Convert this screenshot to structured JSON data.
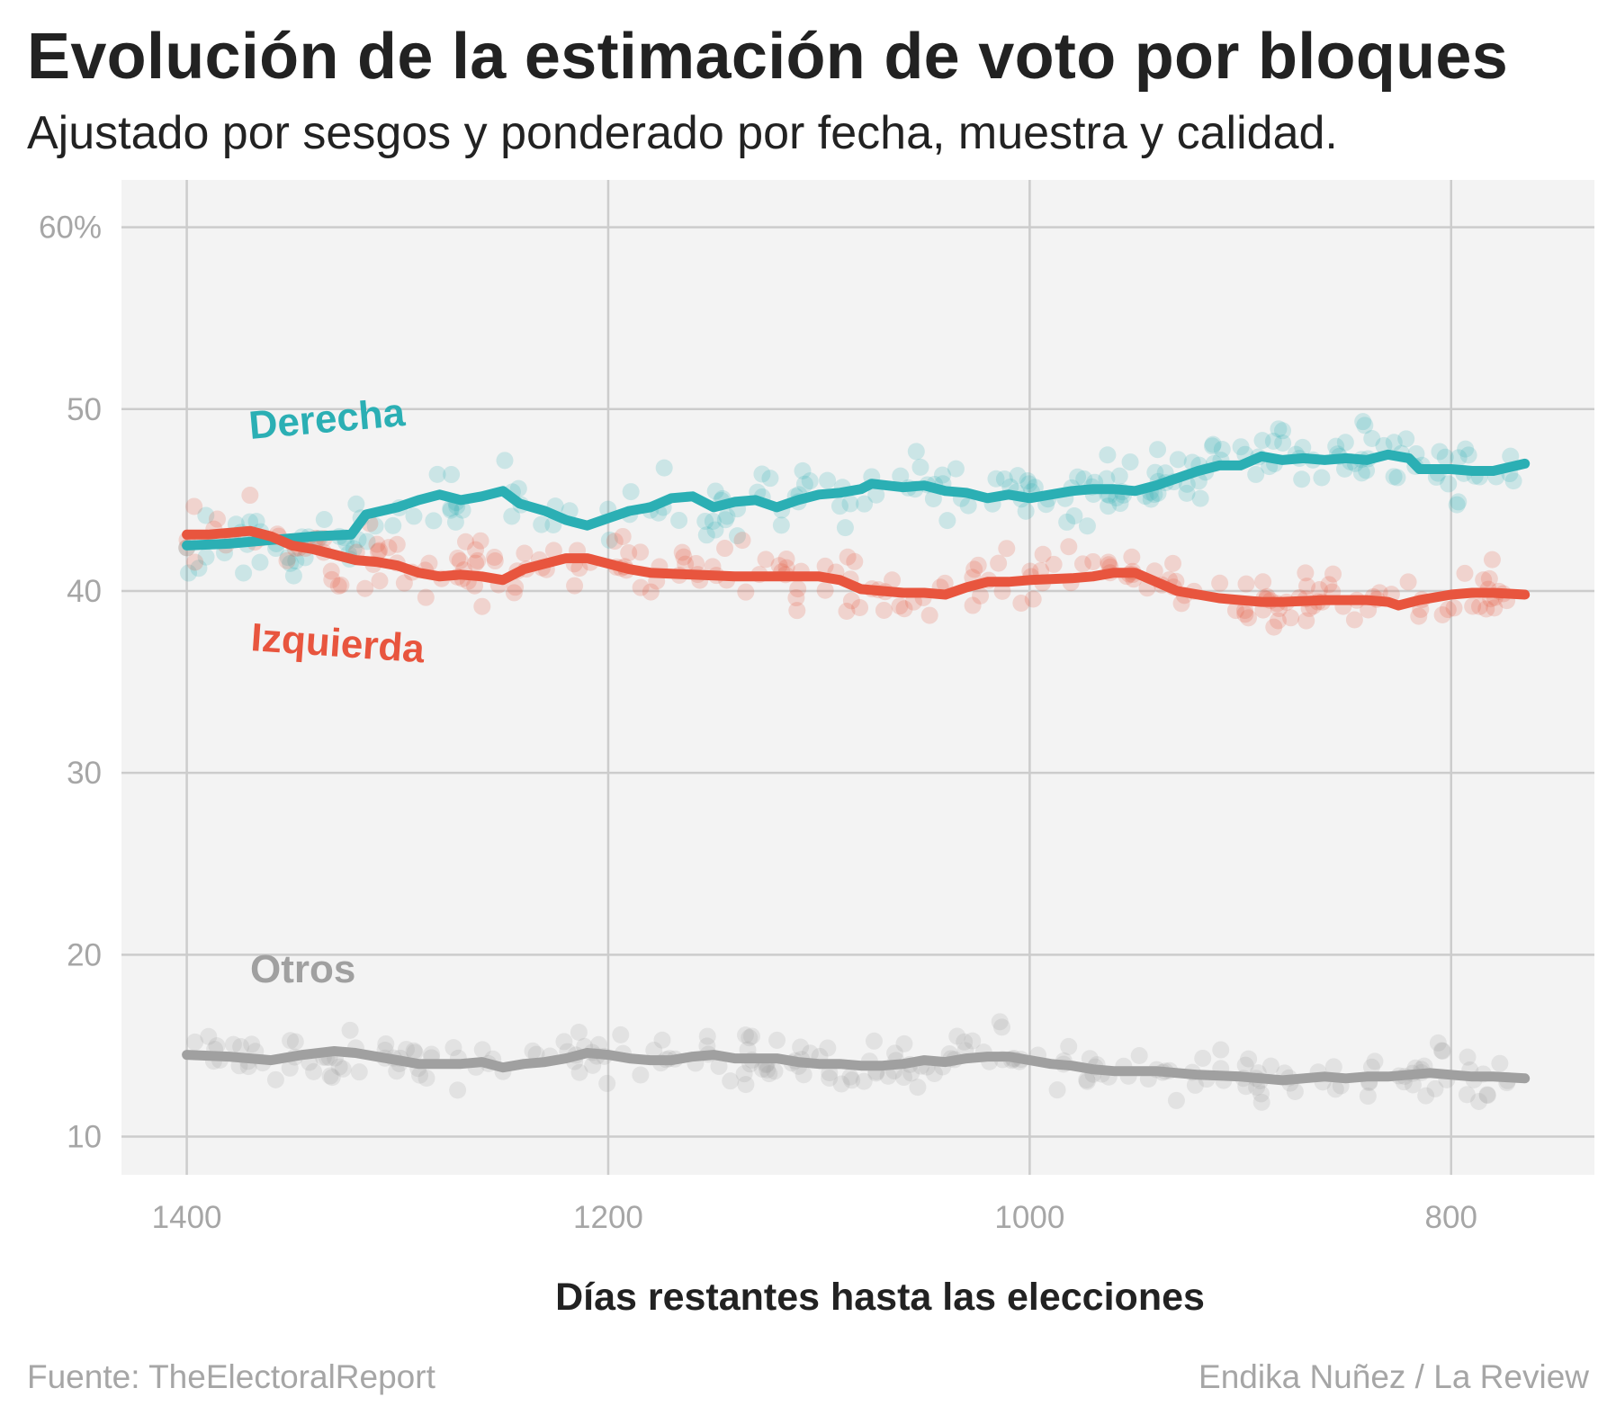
{
  "header": {
    "title": "Evolución de la estimación de voto por bloques",
    "subtitle": "Ajustado por sesgos y ponderado por fecha, muestra y calidad."
  },
  "footer": {
    "source": "Fuente: TheElectoralReport",
    "author": "Endika Nuñez / La Review"
  },
  "colors": {
    "derecha": "#2bafb4",
    "izquierda": "#e8553e",
    "otros": "#a0a0a0",
    "panel": "#f3f3f3",
    "grid": "#cccccc",
    "tick": "#a6a6a6"
  },
  "chart_data": {
    "type": "line",
    "title": "Evolución de la estimación de voto por bloques",
    "subtitle": "Ajustado por sesgos y ponderado por fecha, muestra y calidad.",
    "xlabel": "Días restantes hasta las elecciones",
    "ylabel": "",
    "x_reversed": true,
    "xlim": [
      1431,
      732
    ],
    "ylim": [
      7.9,
      62.6
    ],
    "x_ticks": [
      1400,
      1200,
      1000,
      800
    ],
    "x_tick_labels": [
      "1400",
      "1200",
      "1000",
      "800"
    ],
    "y_ticks": [
      10,
      20,
      30,
      40,
      50,
      60
    ],
    "y_tick_labels": [
      "10",
      "20",
      "30",
      "40",
      "50",
      "60%"
    ],
    "grid": true,
    "legend": "direct labels",
    "series": [
      {
        "name": "Derecha",
        "points": [
          [
            1400,
            42.5
          ],
          [
            1380,
            42.6
          ],
          [
            1360,
            42.8
          ],
          [
            1340,
            43.0
          ],
          [
            1322,
            43.1
          ],
          [
            1315,
            44.2
          ],
          [
            1300,
            44.6
          ],
          [
            1290,
            45.0
          ],
          [
            1280,
            45.3
          ],
          [
            1270,
            45.0
          ],
          [
            1260,
            45.2
          ],
          [
            1250,
            45.5
          ],
          [
            1242,
            44.8
          ],
          [
            1230,
            44.4
          ],
          [
            1220,
            43.9
          ],
          [
            1210,
            43.6
          ],
          [
            1200,
            44.0
          ],
          [
            1190,
            44.4
          ],
          [
            1180,
            44.6
          ],
          [
            1170,
            45.1
          ],
          [
            1160,
            45.2
          ],
          [
            1150,
            44.6
          ],
          [
            1140,
            44.9
          ],
          [
            1130,
            45.0
          ],
          [
            1120,
            44.6
          ],
          [
            1110,
            45.0
          ],
          [
            1100,
            45.3
          ],
          [
            1090,
            45.4
          ],
          [
            1080,
            45.6
          ],
          [
            1075,
            45.9
          ],
          [
            1060,
            45.7
          ],
          [
            1050,
            45.8
          ],
          [
            1040,
            45.5
          ],
          [
            1030,
            45.4
          ],
          [
            1020,
            45.1
          ],
          [
            1010,
            45.3
          ],
          [
            1000,
            45.1
          ],
          [
            990,
            45.3
          ],
          [
            980,
            45.5
          ],
          [
            970,
            45.6
          ],
          [
            960,
            45.6
          ],
          [
            950,
            45.5
          ],
          [
            940,
            45.8
          ],
          [
            930,
            46.2
          ],
          [
            920,
            46.6
          ],
          [
            910,
            46.9
          ],
          [
            900,
            46.9
          ],
          [
            890,
            47.4
          ],
          [
            880,
            47.2
          ],
          [
            870,
            47.3
          ],
          [
            860,
            47.2
          ],
          [
            850,
            47.3
          ],
          [
            840,
            47.2
          ],
          [
            830,
            47.5
          ],
          [
            820,
            47.3
          ],
          [
            815,
            46.7
          ],
          [
            800,
            46.7
          ],
          [
            790,
            46.6
          ],
          [
            780,
            46.6
          ],
          [
            765,
            47.0
          ]
        ]
      },
      {
        "name": "Izquierda",
        "points": [
          [
            1400,
            43.1
          ],
          [
            1390,
            43.1
          ],
          [
            1380,
            43.2
          ],
          [
            1370,
            43.3
          ],
          [
            1360,
            43.0
          ],
          [
            1350,
            42.5
          ],
          [
            1340,
            42.3
          ],
          [
            1330,
            42.0
          ],
          [
            1320,
            41.7
          ],
          [
            1310,
            41.6
          ],
          [
            1300,
            41.4
          ],
          [
            1290,
            41.0
          ],
          [
            1280,
            40.8
          ],
          [
            1270,
            40.9
          ],
          [
            1260,
            40.8
          ],
          [
            1250,
            40.6
          ],
          [
            1240,
            41.2
          ],
          [
            1230,
            41.5
          ],
          [
            1220,
            41.8
          ],
          [
            1210,
            41.8
          ],
          [
            1200,
            41.5
          ],
          [
            1190,
            41.2
          ],
          [
            1180,
            41.0
          ],
          [
            1160,
            40.9
          ],
          [
            1140,
            40.8
          ],
          [
            1120,
            40.8
          ],
          [
            1100,
            40.8
          ],
          [
            1090,
            40.6
          ],
          [
            1080,
            40.1
          ],
          [
            1060,
            39.9
          ],
          [
            1050,
            39.9
          ],
          [
            1040,
            39.8
          ],
          [
            1030,
            40.2
          ],
          [
            1020,
            40.5
          ],
          [
            1010,
            40.5
          ],
          [
            1000,
            40.6
          ],
          [
            980,
            40.7
          ],
          [
            970,
            40.8
          ],
          [
            960,
            41.0
          ],
          [
            950,
            41.0
          ],
          [
            940,
            40.5
          ],
          [
            930,
            40.0
          ],
          [
            920,
            39.8
          ],
          [
            910,
            39.6
          ],
          [
            900,
            39.5
          ],
          [
            890,
            39.4
          ],
          [
            880,
            39.4
          ],
          [
            860,
            39.5
          ],
          [
            840,
            39.5
          ],
          [
            830,
            39.4
          ],
          [
            825,
            39.2
          ],
          [
            815,
            39.5
          ],
          [
            800,
            39.8
          ],
          [
            790,
            39.9
          ],
          [
            780,
            39.9
          ],
          [
            765,
            39.8
          ]
        ]
      },
      {
        "name": "Otros",
        "points": [
          [
            1400,
            14.5
          ],
          [
            1380,
            14.4
          ],
          [
            1360,
            14.2
          ],
          [
            1345,
            14.5
          ],
          [
            1330,
            14.7
          ],
          [
            1320,
            14.6
          ],
          [
            1310,
            14.4
          ],
          [
            1300,
            14.2
          ],
          [
            1290,
            14.0
          ],
          [
            1270,
            14.0
          ],
          [
            1260,
            14.1
          ],
          [
            1250,
            13.8
          ],
          [
            1240,
            14.0
          ],
          [
            1230,
            14.1
          ],
          [
            1220,
            14.3
          ],
          [
            1210,
            14.6
          ],
          [
            1200,
            14.5
          ],
          [
            1190,
            14.3
          ],
          [
            1180,
            14.2
          ],
          [
            1170,
            14.2
          ],
          [
            1160,
            14.4
          ],
          [
            1150,
            14.5
          ],
          [
            1140,
            14.3
          ],
          [
            1120,
            14.3
          ],
          [
            1110,
            14.1
          ],
          [
            1100,
            14.0
          ],
          [
            1090,
            14.0
          ],
          [
            1080,
            13.9
          ],
          [
            1070,
            13.9
          ],
          [
            1060,
            14.0
          ],
          [
            1050,
            14.2
          ],
          [
            1040,
            14.1
          ],
          [
            1030,
            14.3
          ],
          [
            1020,
            14.4
          ],
          [
            1010,
            14.4
          ],
          [
            1000,
            14.2
          ],
          [
            990,
            14.0
          ],
          [
            980,
            13.9
          ],
          [
            970,
            13.7
          ],
          [
            960,
            13.6
          ],
          [
            950,
            13.6
          ],
          [
            940,
            13.6
          ],
          [
            930,
            13.5
          ],
          [
            920,
            13.4
          ],
          [
            900,
            13.3
          ],
          [
            890,
            13.2
          ],
          [
            880,
            13.1
          ],
          [
            870,
            13.2
          ],
          [
            860,
            13.3
          ],
          [
            850,
            13.2
          ],
          [
            840,
            13.3
          ],
          [
            830,
            13.3
          ],
          [
            820,
            13.4
          ],
          [
            810,
            13.5
          ],
          [
            800,
            13.4
          ],
          [
            790,
            13.3
          ],
          [
            780,
            13.3
          ],
          [
            765,
            13.2
          ]
        ]
      }
    ],
    "annotations": [
      {
        "text": "Derecha",
        "series": "Derecha"
      },
      {
        "text": "Izquierda",
        "series": "Izquierda"
      },
      {
        "text": "Otros",
        "series": "Otros"
      }
    ]
  }
}
